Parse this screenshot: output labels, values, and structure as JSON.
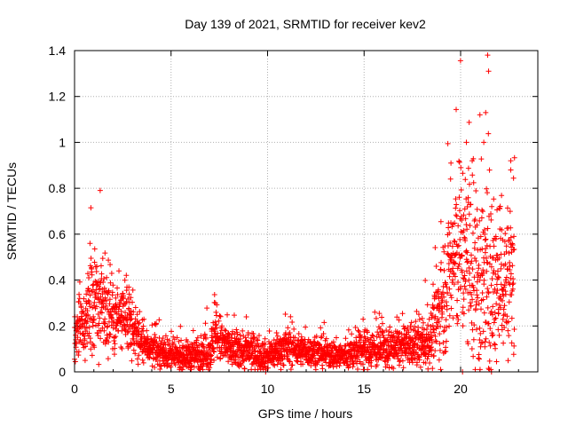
{
  "chart_data": {
    "type": "scatter",
    "title": "Day 139 of 2021, SRMTID for receiver kev2",
    "xlabel": "GPS time / hours",
    "ylabel": "SRMTID / TECUs",
    "xlim": [
      0,
      24
    ],
    "ylim": [
      0,
      1.4
    ],
    "xticks": [
      0,
      5,
      10,
      15,
      20
    ],
    "xtick_labels": [
      "0",
      "5",
      "10",
      "15",
      "20"
    ],
    "yticks": [
      0,
      0.2,
      0.4,
      0.6,
      0.8,
      1.0,
      1.2,
      1.4
    ],
    "ytick_labels": [
      "0",
      "0.2",
      "0.4",
      "0.6",
      "0.8",
      "1",
      "1.2",
      "1.4"
    ],
    "grid": true,
    "marker": "+",
    "series": [
      {
        "name": "SRMTID",
        "color": "#ff0000",
        "x_range": [
          0,
          22.8
        ],
        "sample_step_hours": 0.0083,
        "profile_hours": [
          0,
          0.5,
          1.0,
          1.5,
          2.0,
          2.5,
          3.0,
          3.5,
          4.0,
          5.0,
          6.0,
          7.0,
          7.3,
          8.0,
          9.0,
          10.0,
          11.0,
          12.0,
          13.0,
          14.0,
          15.0,
          16.0,
          17.0,
          18.0,
          18.5,
          19.0,
          19.5,
          20.0,
          20.5,
          21.0,
          21.5,
          22.0,
          22.5,
          22.8
        ],
        "profile_median": [
          0.17,
          0.2,
          0.3,
          0.3,
          0.26,
          0.22,
          0.2,
          0.12,
          0.1,
          0.07,
          0.07,
          0.09,
          0.16,
          0.1,
          0.09,
          0.07,
          0.11,
          0.09,
          0.08,
          0.07,
          0.1,
          0.1,
          0.11,
          0.12,
          0.15,
          0.3,
          0.45,
          0.55,
          0.45,
          0.4,
          0.35,
          0.38,
          0.4,
          0.45
        ],
        "profile_spread": [
          0.06,
          0.08,
          0.1,
          0.1,
          0.09,
          0.07,
          0.06,
          0.04,
          0.03,
          0.03,
          0.03,
          0.04,
          0.06,
          0.04,
          0.04,
          0.03,
          0.04,
          0.03,
          0.03,
          0.03,
          0.04,
          0.04,
          0.04,
          0.05,
          0.06,
          0.12,
          0.16,
          0.2,
          0.2,
          0.22,
          0.2,
          0.16,
          0.16,
          0.14
        ],
        "peaks": [
          {
            "x": 0.8,
            "y": 0.56
          },
          {
            "x": 2.3,
            "y": 0.44
          },
          {
            "x": 7.3,
            "y": 0.3
          },
          {
            "x": 8.9,
            "y": 0.24
          },
          {
            "x": 17.4,
            "y": 0.2
          },
          {
            "x": 19.5,
            "y": 0.91
          },
          {
            "x": 20.3,
            "y": 1.0
          },
          {
            "x": 20.6,
            "y": 0.92
          },
          {
            "x": 21.0,
            "y": 1.12
          },
          {
            "x": 21.2,
            "y": 1.0
          },
          {
            "x": 21.4,
            "y": 1.38
          },
          {
            "x": 21.45,
            "y": 1.31
          },
          {
            "x": 21.3,
            "y": 1.13
          },
          {
            "x": 22.6,
            "y": 0.92
          },
          {
            "x": 22.6,
            "y": 0.88
          }
        ],
        "zero_points": [
          {
            "x": 9.9,
            "y": 0.0
          },
          {
            "x": 20.1,
            "y": 0.0
          },
          {
            "x": 21.6,
            "y": 0.0
          }
        ]
      }
    ]
  }
}
